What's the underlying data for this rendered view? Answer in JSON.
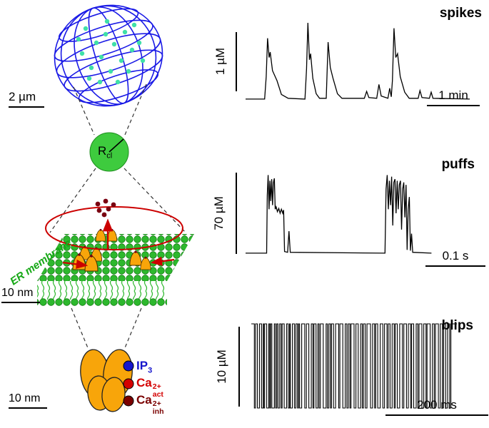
{
  "figure": {
    "cell": {
      "scale": "2 µm"
    },
    "cluster": {
      "r_main": "R",
      "r_sub": "cl"
    },
    "membrane": {
      "er_label": "ER membrane",
      "scale": "10 nm"
    },
    "channel": {
      "scale": "10 nm",
      "sites": [
        {
          "main": "IP",
          "sub": "3",
          "sup": "",
          "color": "#1515cc"
        },
        {
          "main": "Ca",
          "sub": "act",
          "sup": "2+",
          "color": "#d40000"
        },
        {
          "main": "Ca",
          "sub": "inh",
          "sup": "2+",
          "color": "#7a0000"
        }
      ]
    }
  },
  "colors": {
    "wireframe_blue": "#1a1ae6",
    "membrane_green": "#2db82d",
    "channel_orange": "#f8a50a",
    "signal_red": "#cc0000",
    "calcium_dark_red": "#7a0010",
    "er_text_green": "#16a816",
    "nucleus_dot_green": "#3fe0a8"
  },
  "chart_data": [
    {
      "type": "line",
      "title": "spikes",
      "y_scale": "1 µM",
      "x_scale": "1 min",
      "ylim": [
        0,
        1
      ],
      "stroke": 1.3,
      "points": [
        [
          0,
          0.01
        ],
        [
          0.085,
          0.01
        ],
        [
          0.092,
          0.3
        ],
        [
          0.098,
          0.8
        ],
        [
          0.105,
          0.55
        ],
        [
          0.11,
          0.62
        ],
        [
          0.12,
          0.38
        ],
        [
          0.14,
          0.25
        ],
        [
          0.16,
          0.07
        ],
        [
          0.19,
          0.02
        ],
        [
          0.265,
          0.01
        ],
        [
          0.272,
          0.4
        ],
        [
          0.278,
          1.0
        ],
        [
          0.285,
          0.52
        ],
        [
          0.29,
          0.6
        ],
        [
          0.3,
          0.28
        ],
        [
          0.315,
          0.08
        ],
        [
          0.33,
          0.02
        ],
        [
          0.36,
          0.02
        ],
        [
          0.368,
          0.75
        ],
        [
          0.378,
          0.42
        ],
        [
          0.39,
          0.28
        ],
        [
          0.41,
          0.08
        ],
        [
          0.43,
          0.02
        ],
        [
          0.53,
          0.02
        ],
        [
          0.54,
          0.11
        ],
        [
          0.55,
          0.03
        ],
        [
          0.585,
          0.02
        ],
        [
          0.595,
          0.2
        ],
        [
          0.605,
          0.05
        ],
        [
          0.635,
          0.02
        ],
        [
          0.643,
          0.15
        ],
        [
          0.65,
          0.04
        ],
        [
          0.655,
          0.25
        ],
        [
          0.662,
          0.93
        ],
        [
          0.67,
          0.55
        ],
        [
          0.678,
          0.6
        ],
        [
          0.69,
          0.3
        ],
        [
          0.71,
          0.1
        ],
        [
          0.73,
          0.02
        ],
        [
          0.77,
          0.02
        ],
        [
          0.778,
          0.12
        ],
        [
          0.787,
          0.03
        ],
        [
          0.82,
          0.02
        ],
        [
          0.828,
          0.1
        ],
        [
          0.836,
          0.02
        ],
        [
          1,
          0.01
        ]
      ]
    },
    {
      "type": "line",
      "title": "puffs",
      "y_scale": "70  µM",
      "x_scale": "0.1 s",
      "ylim": [
        0,
        70
      ],
      "stroke": 1.3,
      "points": [
        [
          0,
          0.01
        ],
        [
          0.095,
          0.01
        ],
        [
          0.098,
          0.72
        ],
        [
          0.102,
          0.97
        ],
        [
          0.106,
          0.55
        ],
        [
          0.11,
          0.9
        ],
        [
          0.114,
          0.65
        ],
        [
          0.118,
          0.92
        ],
        [
          0.122,
          0.6
        ],
        [
          0.126,
          0.88
        ],
        [
          0.13,
          0.93
        ],
        [
          0.134,
          0.55
        ],
        [
          0.138,
          0.58
        ],
        [
          0.144,
          0.52
        ],
        [
          0.15,
          0.56
        ],
        [
          0.156,
          0.5
        ],
        [
          0.162,
          0.55
        ],
        [
          0.168,
          0.5
        ],
        [
          0.172,
          0.54
        ],
        [
          0.176,
          0.03
        ],
        [
          0.19,
          0.02
        ],
        [
          0.196,
          0.28
        ],
        [
          0.202,
          0.02
        ],
        [
          0.63,
          0.01
        ],
        [
          0.635,
          0.8
        ],
        [
          0.64,
          0.97
        ],
        [
          0.645,
          0.55
        ],
        [
          0.65,
          0.9
        ],
        [
          0.655,
          0.6
        ],
        [
          0.66,
          0.95
        ],
        [
          0.665,
          0.35
        ],
        [
          0.67,
          0.88
        ],
        [
          0.675,
          0.92
        ],
        [
          0.68,
          0.5
        ],
        [
          0.685,
          0.9
        ],
        [
          0.69,
          0.55
        ],
        [
          0.695,
          0.85
        ],
        [
          0.7,
          0.9
        ],
        [
          0.705,
          0.3
        ],
        [
          0.71,
          0.8
        ],
        [
          0.715,
          0.88
        ],
        [
          0.72,
          0.45
        ],
        [
          0.725,
          0.85
        ],
        [
          0.73,
          0.05
        ],
        [
          0.735,
          0.55
        ],
        [
          0.74,
          0.7
        ],
        [
          0.745,
          0.04
        ],
        [
          0.75,
          0.25
        ],
        [
          0.755,
          0.02
        ],
        [
          0.84,
          0.01
        ]
      ]
    },
    {
      "type": "line",
      "title": "blips",
      "y_scale": "10  µM",
      "x_scale": "200 ms",
      "ylim": [
        0,
        10
      ],
      "baseline": 1,
      "stroke": 1.1,
      "pulses": [
        [
          0.015,
          0.006
        ],
        [
          0.03,
          0.01
        ],
        [
          0.05,
          0.008
        ],
        [
          0.06,
          0.005
        ],
        [
          0.075,
          0.01
        ],
        [
          0.09,
          0.004
        ],
        [
          0.1,
          0.012
        ],
        [
          0.118,
          0.006
        ],
        [
          0.13,
          0.008
        ],
        [
          0.145,
          0.005
        ],
        [
          0.16,
          0.012
        ],
        [
          0.18,
          0.006
        ],
        [
          0.19,
          0.01
        ],
        [
          0.21,
          0.007
        ],
        [
          0.225,
          0.005
        ],
        [
          0.235,
          0.01
        ],
        [
          0.26,
          0.008
        ],
        [
          0.28,
          0.012
        ],
        [
          0.3,
          0.005
        ],
        [
          0.315,
          0.009
        ],
        [
          0.33,
          0.006
        ],
        [
          0.35,
          0.014
        ],
        [
          0.37,
          0.007
        ],
        [
          0.385,
          0.005
        ],
        [
          0.4,
          0.01
        ],
        [
          0.425,
          0.006
        ],
        [
          0.445,
          0.012
        ],
        [
          0.465,
          0.007
        ],
        [
          0.48,
          0.005
        ],
        [
          0.5,
          0.009
        ],
        [
          0.52,
          0.012
        ],
        [
          0.54,
          0.006
        ],
        [
          0.555,
          0.008
        ],
        [
          0.58,
          0.01
        ],
        [
          0.6,
          0.005
        ],
        [
          0.615,
          0.012
        ],
        [
          0.64,
          0.008
        ],
        [
          0.66,
          0.006
        ],
        [
          0.675,
          0.01
        ],
        [
          0.695,
          0.005
        ],
        [
          0.71,
          0.012
        ],
        [
          0.735,
          0.007
        ],
        [
          0.755,
          0.009
        ],
        [
          0.775,
          0.005
        ],
        [
          0.79,
          0.012
        ],
        [
          0.81,
          0.006
        ],
        [
          0.83,
          0.009
        ],
        [
          0.85,
          0.005
        ],
        [
          0.87,
          0.011
        ],
        [
          0.89,
          0.006
        ],
        [
          0.91,
          0.009
        ],
        [
          0.93,
          0.005
        ],
        [
          0.945,
          0.01
        ],
        [
          0.965,
          0.006
        ]
      ]
    }
  ]
}
